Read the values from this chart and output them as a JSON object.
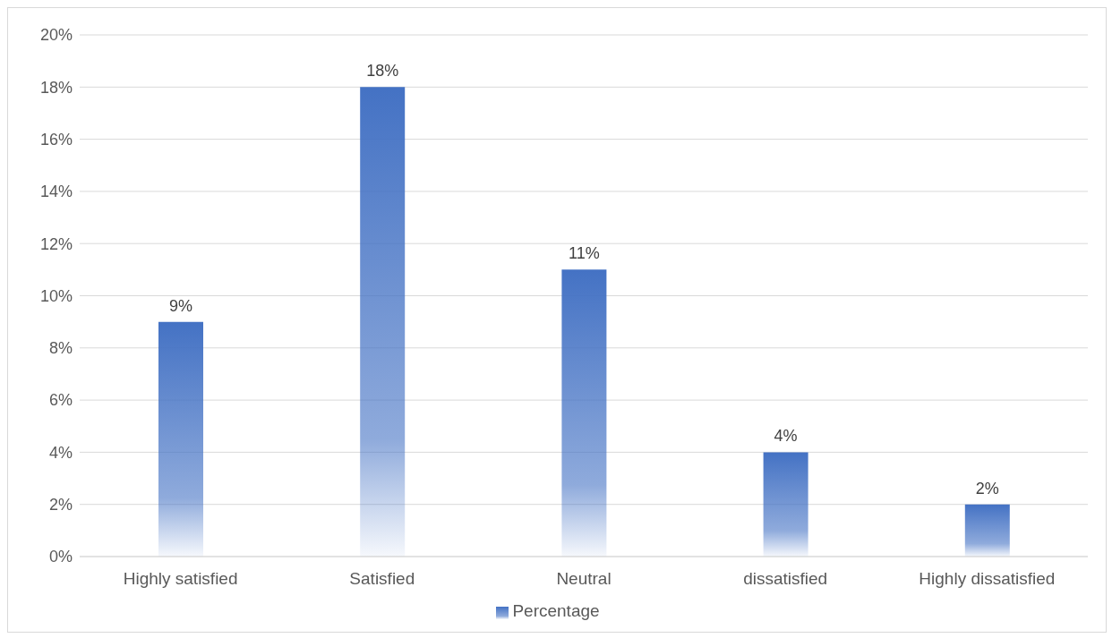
{
  "chart_data": {
    "type": "bar",
    "categories": [
      "Highly satisfied",
      "Satisfied",
      "Neutral",
      "dissatisfied",
      "Highly dissatisfied"
    ],
    "series": [
      {
        "name": "Percentage",
        "color": "#4472c4",
        "values": [
          9,
          18,
          11,
          4,
          2
        ],
        "value_labels": [
          "9%",
          "18%",
          "11%",
          "4%",
          "2%"
        ]
      }
    ],
    "ylim": [
      0,
      20
    ],
    "yticks": [
      {
        "value": 0,
        "label": "0%"
      },
      {
        "value": 2,
        "label": "2%"
      },
      {
        "value": 4,
        "label": "4%"
      },
      {
        "value": 6,
        "label": "6%"
      },
      {
        "value": 8,
        "label": "8%"
      },
      {
        "value": 10,
        "label": "10%"
      },
      {
        "value": 12,
        "label": "12%"
      },
      {
        "value": 14,
        "label": "14%"
      },
      {
        "value": 16,
        "label": "16%"
      },
      {
        "value": 18,
        "label": "18%"
      },
      {
        "value": 20,
        "label": "20%"
      }
    ],
    "grid": "y",
    "legend": "bottom"
  }
}
